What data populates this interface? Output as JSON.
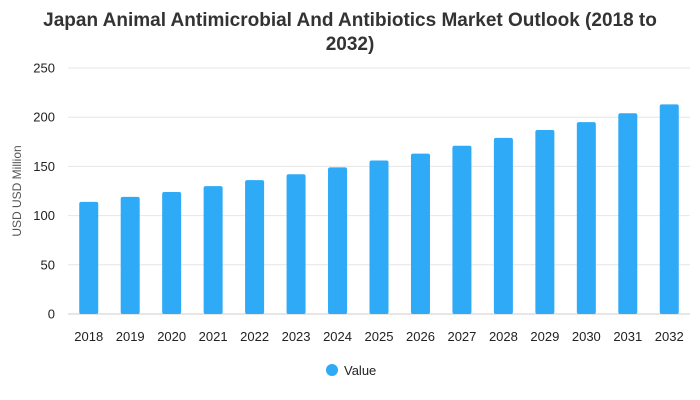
{
  "chart_data": {
    "type": "bar",
    "title_lines": [
      "Japan Animal Antimicrobial And Antibiotics Market Outlook (2018 to",
      "2032)"
    ],
    "xlabel": "",
    "ylabel": "USD USD Million",
    "ylim": [
      0,
      250
    ],
    "yticks": [
      0,
      50,
      100,
      150,
      200,
      250
    ],
    "categories": [
      "2018",
      "2019",
      "2020",
      "2021",
      "2022",
      "2023",
      "2024",
      "2025",
      "2026",
      "2027",
      "2028",
      "2029",
      "2030",
      "2031",
      "2032"
    ],
    "series": [
      {
        "name": "Value",
        "color": "#2eaaf7",
        "values": [
          114,
          119,
          124,
          130,
          136,
          142,
          149,
          156,
          163,
          171,
          179,
          187,
          195,
          204,
          213
        ]
      }
    ],
    "grid": true,
    "legend_position": "bottom-center"
  }
}
